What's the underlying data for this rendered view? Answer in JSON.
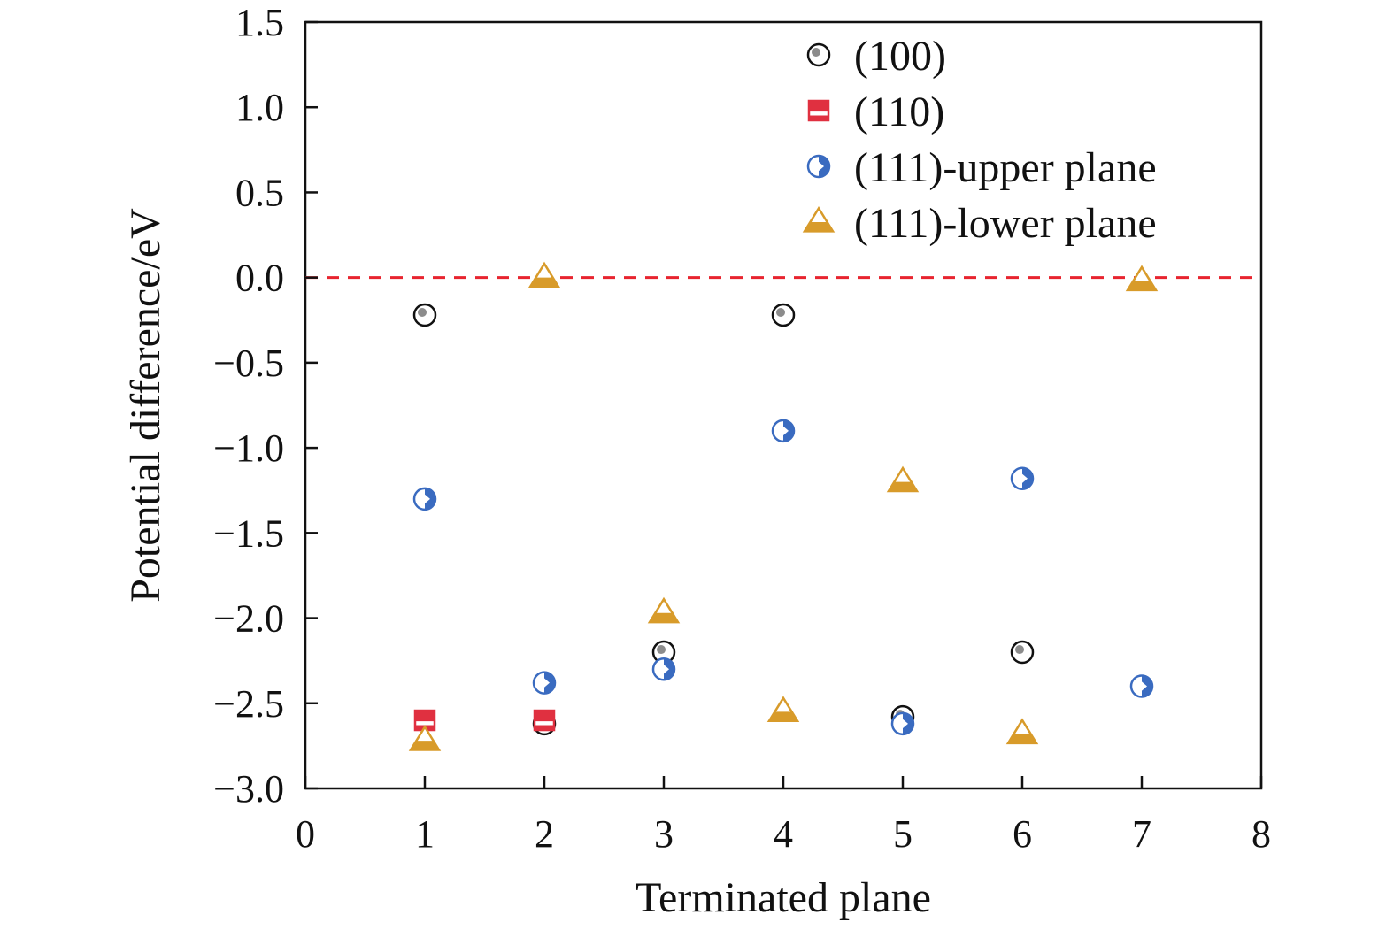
{
  "chart_data": {
    "type": "scatter",
    "title": "",
    "xlabel": "Terminated plane",
    "ylabel": "Potential difference/eV",
    "xlim": [
      0,
      8
    ],
    "ylim": [
      -3.0,
      1.5
    ],
    "xticks": [
      "0",
      "1",
      "2",
      "3",
      "4",
      "5",
      "6",
      "7",
      "8"
    ],
    "yticks": [
      "1.5",
      "1.0",
      "0.5",
      "0.0",
      "−0.5",
      "−1.0",
      "−1.5",
      "−2.0",
      "−2.5",
      "−3.0"
    ],
    "ytick_values": [
      1.5,
      1.0,
      0.5,
      0.0,
      -0.5,
      -1.0,
      -1.5,
      -2.0,
      -2.5,
      -3.0
    ],
    "grid": false,
    "legend_position": "top-right",
    "reference_line": {
      "y": 0.0,
      "color": "#e8242f",
      "style": "dashed"
    },
    "series": [
      {
        "name": "(100)",
        "marker": "circle-dot",
        "color": "#111111",
        "x": [
          1,
          2,
          3,
          4,
          5,
          6
        ],
        "y": [
          -0.22,
          -2.62,
          -2.2,
          -0.22,
          -2.58,
          -2.2
        ]
      },
      {
        "name": "(110)",
        "marker": "square-half",
        "color": "#e03040",
        "x": [
          1,
          2
        ],
        "y": [
          -2.6,
          -2.6
        ]
      },
      {
        "name": "(111)-upper plane",
        "marker": "circle-half",
        "color": "#3a6bc0",
        "x": [
          1,
          2,
          3,
          4,
          5,
          6,
          7
        ],
        "y": [
          -1.3,
          -2.38,
          -2.3,
          -0.9,
          -2.62,
          -1.18,
          -2.4
        ]
      },
      {
        "name": "(111)-lower plane",
        "marker": "triangle-half",
        "color": "#d89b2a",
        "x": [
          1,
          2,
          3,
          4,
          5,
          6,
          7
        ],
        "y": [
          -2.72,
          0.0,
          -1.97,
          -2.55,
          -1.2,
          -2.68,
          -0.02
        ]
      }
    ]
  }
}
